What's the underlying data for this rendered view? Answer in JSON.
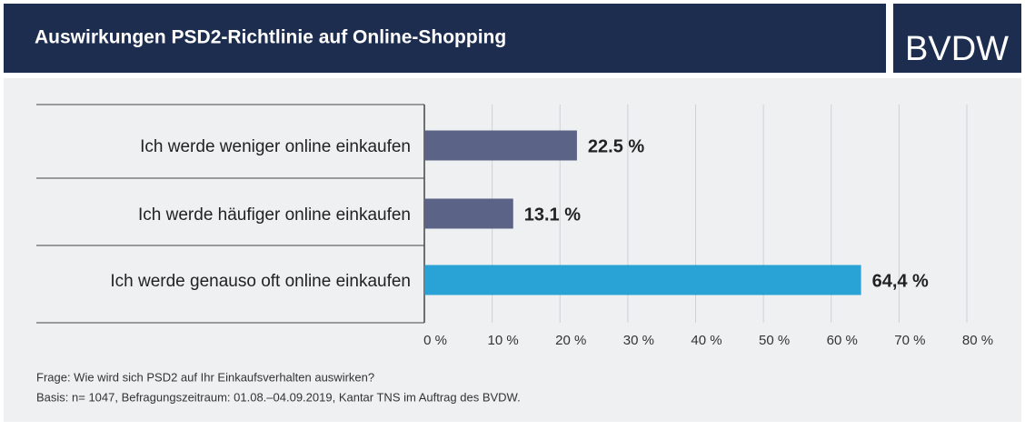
{
  "chart_data": {
    "type": "hbar",
    "title": "Auswirkungen PSD2-Richtlinie auf Online-Shopping",
    "logo": "BVDW",
    "categories": [
      "Ich werde weniger online einkaufen",
      "Ich werde häufiger online einkaufen",
      "Ich werde genauso oft online einkaufen"
    ],
    "values": [
      22.5,
      13.1,
      64.4
    ],
    "value_labels": [
      "22.5 %",
      "13.1 %",
      "64,4 %"
    ],
    "colors": [
      "#5b6386",
      "#5b6386",
      "#29a3d6"
    ],
    "xlim": [
      0,
      80
    ],
    "xticks": [
      {
        "value": 0,
        "label": "0 %"
      },
      {
        "value": 10,
        "label": "10 %"
      },
      {
        "value": 20,
        "label": "20 %"
      },
      {
        "value": 30,
        "label": "30 %"
      },
      {
        "value": 40,
        "label": "40 %"
      },
      {
        "value": 50,
        "label": "50 %"
      },
      {
        "value": 60,
        "label": "60 %"
      },
      {
        "value": 70,
        "label": "70 %"
      },
      {
        "value": 80,
        "label": "80 %"
      }
    ],
    "grid": true,
    "notes": [
      "Frage: Wie wird sich PSD2 auf Ihr Einkaufsverhalten auswirken?",
      "Basis: n= 1047, Befragungszeitraum: 01.08.–04.09.2019, Kantar TNS im Auftrag des BVDW."
    ]
  }
}
